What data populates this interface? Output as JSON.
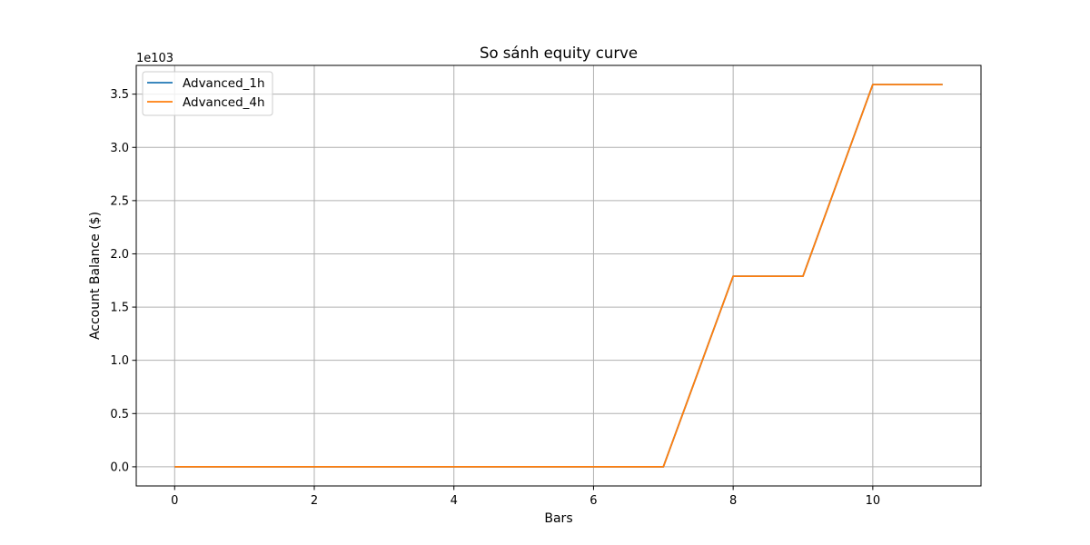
{
  "chart_data": {
    "type": "line",
    "title": "So sánh equity curve",
    "xlabel": "Bars",
    "ylabel": "Account Balance ($)",
    "y_offset_label": "1e103",
    "xlim": [
      -0.55,
      11.55
    ],
    "ylim": [
      -0.18,
      3.77
    ],
    "x_ticks": [
      0,
      2,
      4,
      6,
      8,
      10
    ],
    "y_ticks": [
      0.0,
      0.5,
      1.0,
      1.5,
      2.0,
      2.5,
      3.0,
      3.5
    ],
    "grid": true,
    "legend_position": "top-left",
    "x": [
      0,
      1,
      2,
      3,
      4,
      5,
      6,
      7,
      8,
      9,
      10,
      11
    ],
    "series": [
      {
        "name": "Advanced_1h",
        "color": "#1f77b4",
        "values": [
          0,
          0,
          0,
          0,
          0,
          0,
          0,
          0,
          1.79,
          1.79,
          3.59,
          3.59
        ]
      },
      {
        "name": "Advanced_4h",
        "color": "#ff7f0e",
        "values": [
          0,
          0,
          0,
          0,
          0,
          0,
          0,
          0,
          1.79,
          1.79,
          3.59,
          3.59
        ]
      }
    ]
  }
}
